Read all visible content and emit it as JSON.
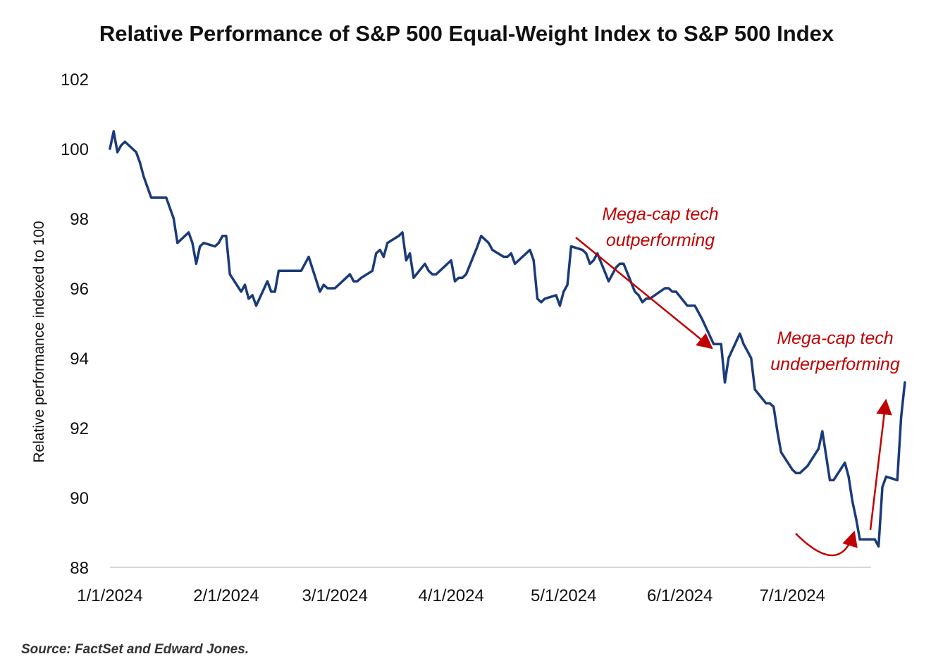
{
  "chart_data": {
    "type": "line",
    "title": "Relative Performance of S&P 500 Equal-Weight Index to S&P 500 Index",
    "ylabel": "Relative performance indexed to 100",
    "xlabel": "",
    "ylim": [
      88,
      102
    ],
    "yticks": [
      88,
      90,
      92,
      94,
      96,
      98,
      100,
      102
    ],
    "xlim": [
      "2024-01-01",
      "2024-07-22"
    ],
    "xticks": [
      {
        "date": "2024-01-01",
        "label": "1/1/2024"
      },
      {
        "date": "2024-02-01",
        "label": "2/1/2024"
      },
      {
        "date": "2024-03-01",
        "label": "3/1/2024"
      },
      {
        "date": "2024-04-01",
        "label": "4/1/2024"
      },
      {
        "date": "2024-05-01",
        "label": "5/1/2024"
      },
      {
        "date": "2024-06-01",
        "label": "6/1/2024"
      },
      {
        "date": "2024-07-01",
        "label": "7/1/2024"
      }
    ],
    "grid": false,
    "line_color": "#1a3a7a",
    "annotation_color": "#c00000",
    "series": [
      {
        "points": [
          [
            "2024-01-01",
            100.0
          ],
          [
            "2024-01-02",
            100.5
          ],
          [
            "2024-01-03",
            99.9
          ],
          [
            "2024-01-04",
            100.1
          ],
          [
            "2024-01-05",
            100.2
          ],
          [
            "2024-01-08",
            99.9
          ],
          [
            "2024-01-09",
            99.6
          ],
          [
            "2024-01-10",
            99.2
          ],
          [
            "2024-01-11",
            98.9
          ],
          [
            "2024-01-12",
            98.6
          ],
          [
            "2024-01-16",
            98.6
          ],
          [
            "2024-01-17",
            98.3
          ],
          [
            "2024-01-18",
            98.0
          ],
          [
            "2024-01-19",
            97.3
          ],
          [
            "2024-01-22",
            97.6
          ],
          [
            "2024-01-23",
            97.3
          ],
          [
            "2024-01-24",
            96.7
          ],
          [
            "2024-01-25",
            97.2
          ],
          [
            "2024-01-26",
            97.3
          ],
          [
            "2024-01-29",
            97.2
          ],
          [
            "2024-01-30",
            97.3
          ],
          [
            "2024-01-31",
            97.5
          ],
          [
            "2024-02-01",
            97.5
          ],
          [
            "2024-02-02",
            96.4
          ],
          [
            "2024-02-05",
            95.9
          ],
          [
            "2024-02-06",
            96.1
          ],
          [
            "2024-02-07",
            95.7
          ],
          [
            "2024-02-08",
            95.8
          ],
          [
            "2024-02-09",
            95.5
          ],
          [
            "2024-02-12",
            96.2
          ],
          [
            "2024-02-13",
            95.9
          ],
          [
            "2024-02-14",
            95.9
          ],
          [
            "2024-02-15",
            96.5
          ],
          [
            "2024-02-16",
            96.5
          ],
          [
            "2024-02-20",
            96.5
          ],
          [
            "2024-02-21",
            96.5
          ],
          [
            "2024-02-22",
            96.7
          ],
          [
            "2024-02-23",
            96.9
          ],
          [
            "2024-02-26",
            95.9
          ],
          [
            "2024-02-27",
            96.1
          ],
          [
            "2024-02-28",
            96.0
          ],
          [
            "2024-02-29",
            96.0
          ],
          [
            "2024-03-01",
            96.0
          ],
          [
            "2024-03-04",
            96.3
          ],
          [
            "2024-03-05",
            96.4
          ],
          [
            "2024-03-06",
            96.2
          ],
          [
            "2024-03-07",
            96.2
          ],
          [
            "2024-03-08",
            96.3
          ],
          [
            "2024-03-11",
            96.5
          ],
          [
            "2024-03-12",
            97.0
          ],
          [
            "2024-03-13",
            97.1
          ],
          [
            "2024-03-14",
            96.9
          ],
          [
            "2024-03-15",
            97.3
          ],
          [
            "2024-03-18",
            97.5
          ],
          [
            "2024-03-19",
            97.6
          ],
          [
            "2024-03-20",
            96.8
          ],
          [
            "2024-03-21",
            97.0
          ],
          [
            "2024-03-22",
            96.3
          ],
          [
            "2024-03-25",
            96.7
          ],
          [
            "2024-03-26",
            96.5
          ],
          [
            "2024-03-27",
            96.4
          ],
          [
            "2024-03-28",
            96.4
          ],
          [
            "2024-04-01",
            96.8
          ],
          [
            "2024-04-02",
            96.2
          ],
          [
            "2024-04-03",
            96.3
          ],
          [
            "2024-04-04",
            96.3
          ],
          [
            "2024-04-05",
            96.4
          ],
          [
            "2024-04-08",
            97.2
          ],
          [
            "2024-04-09",
            97.5
          ],
          [
            "2024-04-10",
            97.4
          ],
          [
            "2024-04-11",
            97.3
          ],
          [
            "2024-04-12",
            97.1
          ],
          [
            "2024-04-15",
            96.9
          ],
          [
            "2024-04-16",
            96.9
          ],
          [
            "2024-04-17",
            97.0
          ],
          [
            "2024-04-18",
            96.7
          ],
          [
            "2024-04-19",
            96.8
          ],
          [
            "2024-04-22",
            97.1
          ],
          [
            "2024-04-23",
            96.8
          ],
          [
            "2024-04-24",
            95.7
          ],
          [
            "2024-04-25",
            95.6
          ],
          [
            "2024-04-26",
            95.7
          ],
          [
            "2024-04-29",
            95.8
          ],
          [
            "2024-04-30",
            95.5
          ],
          [
            "2024-05-01",
            95.9
          ],
          [
            "2024-05-02",
            96.1
          ],
          [
            "2024-05-03",
            97.2
          ],
          [
            "2024-05-06",
            97.1
          ],
          [
            "2024-05-07",
            97.0
          ],
          [
            "2024-05-08",
            96.7
          ],
          [
            "2024-05-09",
            96.8
          ],
          [
            "2024-05-10",
            97.0
          ],
          [
            "2024-05-13",
            96.2
          ],
          [
            "2024-05-14",
            96.4
          ],
          [
            "2024-05-15",
            96.6
          ],
          [
            "2024-05-16",
            96.7
          ],
          [
            "2024-05-17",
            96.7
          ],
          [
            "2024-05-20",
            95.9
          ],
          [
            "2024-05-21",
            95.8
          ],
          [
            "2024-05-22",
            95.6
          ],
          [
            "2024-05-23",
            95.7
          ],
          [
            "2024-05-24",
            95.7
          ],
          [
            "2024-05-28",
            96.0
          ],
          [
            "2024-05-29",
            96.0
          ],
          [
            "2024-05-30",
            95.9
          ],
          [
            "2024-05-31",
            95.9
          ],
          [
            "2024-06-03",
            95.5
          ],
          [
            "2024-06-04",
            95.5
          ],
          [
            "2024-06-05",
            95.5
          ],
          [
            "2024-06-06",
            95.3
          ],
          [
            "2024-06-07",
            95.1
          ],
          [
            "2024-06-10",
            94.4
          ],
          [
            "2024-06-11",
            94.4
          ],
          [
            "2024-06-12",
            94.4
          ],
          [
            "2024-06-13",
            93.3
          ],
          [
            "2024-06-14",
            94.0
          ],
          [
            "2024-06-17",
            94.7
          ],
          [
            "2024-06-18",
            94.4
          ],
          [
            "2024-06-20",
            94.0
          ],
          [
            "2024-06-21",
            93.1
          ],
          [
            "2024-06-24",
            92.7
          ],
          [
            "2024-06-25",
            92.7
          ],
          [
            "2024-06-26",
            92.6
          ],
          [
            "2024-06-27",
            91.9
          ],
          [
            "2024-06-28",
            91.3
          ],
          [
            "2024-07-01",
            90.8
          ],
          [
            "2024-07-02",
            90.7
          ],
          [
            "2024-07-03",
            90.7
          ],
          [
            "2024-07-05",
            90.9
          ],
          [
            "2024-07-08",
            91.4
          ],
          [
            "2024-07-09",
            91.9
          ],
          [
            "2024-07-10",
            91.2
          ],
          [
            "2024-07-11",
            90.5
          ],
          [
            "2024-07-12",
            90.5
          ],
          [
            "2024-07-15",
            91.0
          ],
          [
            "2024-07-16",
            90.6
          ],
          [
            "2024-07-17",
            89.9
          ],
          [
            "2024-07-18",
            89.4
          ],
          [
            "2024-07-19",
            88.8
          ],
          [
            "2024-07-22",
            88.8
          ],
          [
            "2024-07-23",
            88.8
          ],
          [
            "2024-07-24",
            88.6
          ],
          [
            "2024-07-25",
            90.3
          ],
          [
            "2024-07-26",
            90.6
          ],
          [
            "2024-07-29",
            90.5
          ],
          [
            "2024-07-30",
            92.3
          ],
          [
            "2024-07-31",
            93.3
          ]
        ]
      }
    ],
    "annotations": [
      {
        "text_lines": [
          "Mega-cap tech",
          "outperforming"
        ]
      },
      {
        "text_lines": [
          "Mega-cap tech",
          "underperforming"
        ]
      }
    ],
    "source": "Source: FactSet and Edward Jones."
  }
}
